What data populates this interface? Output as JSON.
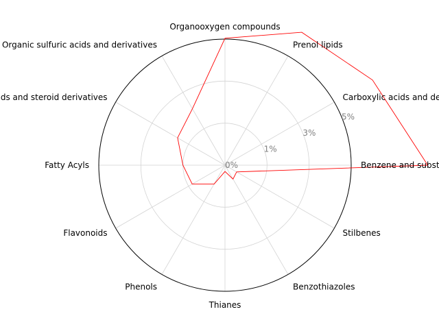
{
  "chart_data": {
    "type": "radar",
    "categories": [
      "Benzene and substituted derivatives",
      "Carboxylic acids and derivatives",
      "Prenol lipids",
      "Organooxygen compounds",
      "Organic sulfuric acids and derivatives",
      "Steroids and steroid derivatives",
      "Fatty Acyls",
      "Flavonoids",
      "Phenols",
      "Thianes",
      "Benzothiazoles",
      "Stilbenes"
    ],
    "values": [
      4.82,
      4.05,
      3.65,
      3.02,
      1.55,
      1.3,
      1.0,
      0.9,
      0.52,
      0.15,
      0.38,
      0.32
    ],
    "radial_ticks": [
      0,
      1,
      2,
      3
    ],
    "radial_tick_labels": [
      "0%",
      "1%",
      "3%",
      "5%"
    ],
    "rmax": 3,
    "grid": true,
    "line_color": "#ff0000",
    "grid_color": "#d3d3d3",
    "outline_color": "#000000",
    "tick_label_color": "#808080"
  }
}
